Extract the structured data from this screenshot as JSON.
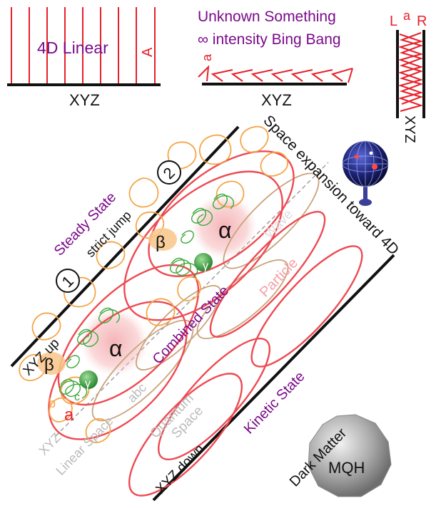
{
  "top": {
    "linear_title": "4D Linear",
    "linear_a": "A",
    "xyz_left": "XYZ",
    "unknown_line1": "Unknown Something",
    "unknown_line2": "∞ intensity Bing Bang",
    "unknown_a": "a",
    "xyz_middle": "XYZ",
    "right_l": "L",
    "right_a": "a",
    "right_r": "R",
    "xyz_right": "XYZ"
  },
  "main": {
    "steady_state": "Steady State",
    "strict_jump": "strict jump",
    "marker_1": "1",
    "marker_2": "2",
    "space_expansion": "Space expansion toward 4D",
    "beta_upper": "β",
    "alpha_upper": "α",
    "gamma_upper": "γ",
    "wave": "Wave",
    "combined_state": "Combined State",
    "particle": "Particle",
    "xyz_up": "XYZ up",
    "beta_lower": "β",
    "alpha_lower": "α",
    "gamma_lower": "γ",
    "b_label": "b",
    "c_label": "c",
    "a_label": "a",
    "xyz_linear_space": "XYZ",
    "linear_space": "Linear Space",
    "abc": "abc",
    "quantum": "Quantum",
    "space": "Space",
    "kinetic_state": "Kinetic State",
    "xyz_down": "XYZ down",
    "dark_matter": "Dark Matter",
    "mqh": "MQH"
  },
  "colors": {
    "red": "#e8202a",
    "purple": "#7a0a8a",
    "orange": "#f5a54a",
    "green": "#3aa83a",
    "tan": "#c9a27a",
    "pink": "#f4a0a8",
    "gray_text": "#bbbbbb"
  }
}
